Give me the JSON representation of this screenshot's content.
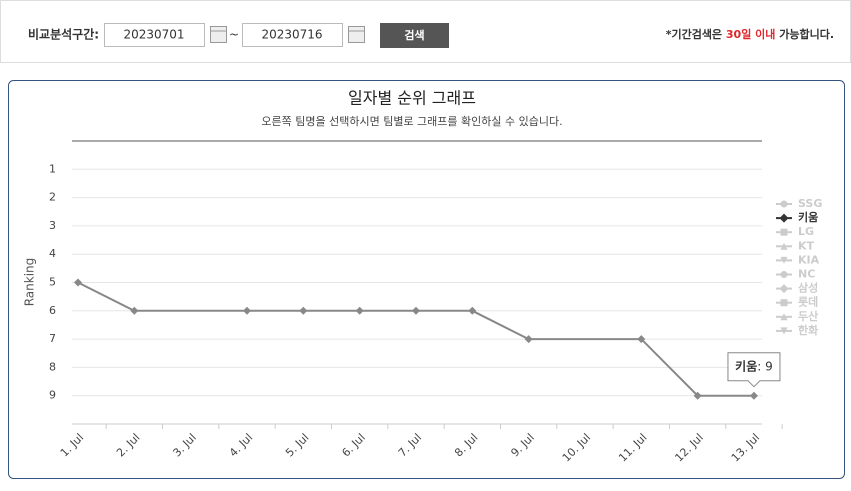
{
  "search": {
    "label": "비교분석구간:",
    "from": "20230701",
    "separator": "~",
    "to": "20230716",
    "button": "검색",
    "note_pre": "*기간검색은 ",
    "note_highlight": "30일 이내",
    "note_post": " 가능합니다."
  },
  "chart_data": {
    "type": "line",
    "title": "일자별 순위 그래프",
    "subtitle": "오른쪽 팀명을 선택하시면 팀별로 그래프를 확인하실 수 있습니다.",
    "y_label": "Ranking",
    "categories": [
      "1. Jul",
      "2. Jul",
      "3. Jul",
      "4. Jul",
      "5. Jul",
      "6. Jul",
      "7. Jul",
      "8. Jul",
      "9. Jul",
      "10. Jul",
      "11. Jul",
      "12. Jul",
      "13. Jul"
    ],
    "series": [
      {
        "name": "키움",
        "color": "#888888",
        "values": [
          5,
          6,
          null,
          6,
          6,
          6,
          6,
          6,
          7,
          null,
          7,
          9,
          9
        ]
      }
    ],
    "connect_nulls": true,
    "ylim": [
      0,
      10
    ],
    "y_reversed": true,
    "yticks": [
      1,
      2,
      3,
      4,
      5,
      6,
      7,
      8,
      9
    ],
    "grid": true,
    "legend_position": "right",
    "legend": [
      {
        "name": "SSG",
        "symbol": "circle",
        "active": false
      },
      {
        "name": "키움",
        "symbol": "diamond",
        "active": true
      },
      {
        "name": "LG",
        "symbol": "square",
        "active": false
      },
      {
        "name": "KT",
        "symbol": "triangle",
        "active": false
      },
      {
        "name": "KIA",
        "symbol": "triangle-down",
        "active": false
      },
      {
        "name": "NC",
        "symbol": "circle",
        "active": false
      },
      {
        "name": "삼성",
        "symbol": "diamond",
        "active": false
      },
      {
        "name": "롯데",
        "symbol": "square",
        "active": false
      },
      {
        "name": "두산",
        "symbol": "triangle",
        "active": false
      },
      {
        "name": "한화",
        "symbol": "triangle-down",
        "active": false
      }
    ],
    "tooltip": {
      "label": "키움",
      "value": 9,
      "index": 12
    }
  }
}
